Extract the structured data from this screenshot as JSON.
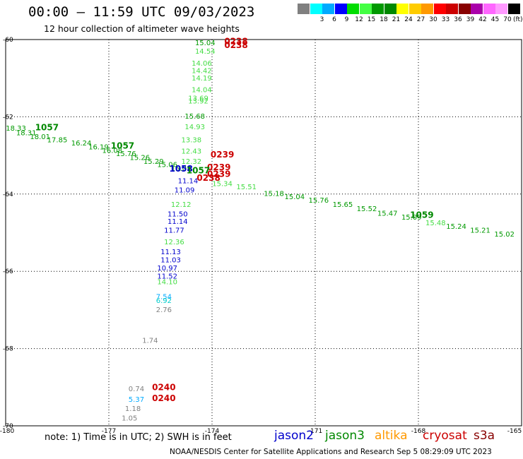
{
  "header": {
    "title": "00:00 – 11:59 UTC 09/03/2023",
    "subtitle": "12 hour collection of altimeter wave heights"
  },
  "color_scale": {
    "unit": "(ft)",
    "items": [
      {
        "color": "#808080",
        "label": ""
      },
      {
        "color": "#00ffff",
        "label": "3"
      },
      {
        "color": "#00aaff",
        "label": "6"
      },
      {
        "color": "#0000ff",
        "label": "9"
      },
      {
        "color": "#00dd00",
        "label": "12"
      },
      {
        "color": "#44ff44",
        "label": "15"
      },
      {
        "color": "#009900",
        "label": "18"
      },
      {
        "color": "#008800",
        "label": "21"
      },
      {
        "color": "#ffff00",
        "label": "24"
      },
      {
        "color": "#ffcc00",
        "label": "27"
      },
      {
        "color": "#ff9900",
        "label": "30"
      },
      {
        "color": "#ff0000",
        "label": "33"
      },
      {
        "color": "#cc0000",
        "label": "36"
      },
      {
        "color": "#880000",
        "label": "39"
      },
      {
        "color": "#aa00aa",
        "label": "42"
      },
      {
        "color": "#ff66ff",
        "label": "45"
      },
      {
        "color": "#ff99ff",
        "label": "70"
      },
      {
        "color": "#000000",
        "label": ""
      }
    ]
  },
  "footer": {
    "note": "note: 1) Time is in UTC; 2) SWH is in feet",
    "credit": "NOAA/NESDIS Center for Satellite Applications and Research    Sep  5 08:29:09 UTC 2023",
    "satellites": [
      {
        "name": "jason2",
        "color": "#0000cc"
      },
      {
        "name": "jason3",
        "color": "#008800"
      },
      {
        "name": "altika",
        "color": "#ff9900"
      },
      {
        "name": "cryosat",
        "color": "#cc0000"
      },
      {
        "name": "s3a",
        "color": "#880000"
      }
    ]
  },
  "chart_data": {
    "type": "scatter",
    "title": "00:00 – 11:59 UTC 09/03/2023",
    "subtitle": "12 hour collection of altimeter wave heights",
    "xlim": [
      -180,
      -165
    ],
    "ylim": [
      -70,
      -60
    ],
    "x_ticks": [
      "-180",
      "-177",
      "-174",
      "-171",
      "-168",
      "-165"
    ],
    "y_ticks": [
      "-60",
      "-62",
      "-64",
      "-66",
      "-68",
      "-70"
    ],
    "grid": true,
    "points": [
      {
        "x": -174.2,
        "y": -60.15,
        "label": "15.04",
        "color": "#009900"
      },
      {
        "x": -174.2,
        "y": -60.37,
        "label": "14.54",
        "color": "#44dd44"
      },
      {
        "x": -174.3,
        "y": -60.68,
        "label": "14.06",
        "color": "#44dd44"
      },
      {
        "x": -174.3,
        "y": -60.87,
        "label": "14.42",
        "color": "#44dd44"
      },
      {
        "x": -174.3,
        "y": -61.06,
        "label": "14.19",
        "color": "#44dd44"
      },
      {
        "x": -174.3,
        "y": -61.36,
        "label": "14.04",
        "color": "#44dd44"
      },
      {
        "x": -174.4,
        "y": -61.58,
        "label": "13.69",
        "color": "#44dd44"
      },
      {
        "x": -174.4,
        "y": -61.65,
        "label": "13.92",
        "color": "#44dd44"
      },
      {
        "x": -174.5,
        "y": -62.05,
        "label": "15.68",
        "color": "#009900"
      },
      {
        "x": -174.5,
        "y": -62.32,
        "label": "14.93",
        "color": "#44dd44"
      },
      {
        "x": -174.6,
        "y": -62.66,
        "label": "13.38",
        "color": "#44dd44"
      },
      {
        "x": -174.6,
        "y": -62.95,
        "label": "12.43",
        "color": "#44dd44"
      },
      {
        "x": -174.6,
        "y": -63.22,
        "label": "12.32",
        "color": "#44dd44"
      },
      {
        "x": -174.7,
        "y": -63.72,
        "label": "11.14",
        "color": "#0000cc"
      },
      {
        "x": -174.8,
        "y": -63.96,
        "label": "11.09",
        "color": "#0000cc"
      },
      {
        "x": -174.9,
        "y": -64.33,
        "label": "12.12",
        "color": "#44dd44"
      },
      {
        "x": -175.0,
        "y": -64.58,
        "label": "11.50",
        "color": "#0000cc"
      },
      {
        "x": -175.0,
        "y": -64.77,
        "label": "11.14",
        "color": "#0000cc"
      },
      {
        "x": -175.1,
        "y": -65.0,
        "label": "11.77",
        "color": "#0000cc"
      },
      {
        "x": -175.1,
        "y": -65.3,
        "label": "12.36",
        "color": "#44dd44"
      },
      {
        "x": -175.2,
        "y": -65.56,
        "label": "11.13",
        "color": "#0000cc"
      },
      {
        "x": -175.2,
        "y": -65.77,
        "label": "11.03",
        "color": "#0000cc"
      },
      {
        "x": -175.3,
        "y": -65.98,
        "label": "10.97",
        "color": "#0000cc"
      },
      {
        "x": -175.3,
        "y": -66.19,
        "label": "11.52",
        "color": "#0000cc"
      },
      {
        "x": -175.3,
        "y": -66.33,
        "label": "14.10",
        "color": "#44dd44"
      },
      {
        "x": -175.4,
        "y": -66.72,
        "label": "7.54",
        "color": "#00aaff"
      },
      {
        "x": -175.4,
        "y": -66.82,
        "label": "6.92",
        "color": "#00cccc"
      },
      {
        "x": -175.4,
        "y": -67.06,
        "label": "2.76",
        "color": "#808080"
      },
      {
        "x": -175.8,
        "y": -67.85,
        "label": "1.74",
        "color": "#808080"
      },
      {
        "x": -176.2,
        "y": -69.1,
        "label": "0.74",
        "color": "#808080"
      },
      {
        "x": -176.2,
        "y": -69.38,
        "label": "5.37",
        "color": "#00aaff"
      },
      {
        "x": -176.3,
        "y": -69.62,
        "label": "1.18",
        "color": "#808080"
      },
      {
        "x": -176.4,
        "y": -69.86,
        "label": "1.05",
        "color": "#808080"
      },
      {
        "x": -179.7,
        "y": -62.36,
        "label": "18.33",
        "color": "#009900"
      },
      {
        "x": -179.4,
        "y": -62.48,
        "label": "18.31",
        "color": "#009900"
      },
      {
        "x": -179.0,
        "y": -62.58,
        "label": "18.01",
        "color": "#009900"
      },
      {
        "x": -178.5,
        "y": -62.66,
        "label": "17.85",
        "color": "#009900"
      },
      {
        "x": -177.8,
        "y": -62.74,
        "label": "16.24",
        "color": "#009900"
      },
      {
        "x": -177.3,
        "y": -62.84,
        "label": "16.19",
        "color": "#009900"
      },
      {
        "x": -176.9,
        "y": -62.93,
        "label": "16.08",
        "color": "#009900"
      },
      {
        "x": -176.5,
        "y": -63.02,
        "label": "15.76",
        "color": "#009900"
      },
      {
        "x": -176.1,
        "y": -63.12,
        "label": "15.26",
        "color": "#009900"
      },
      {
        "x": -175.7,
        "y": -63.22,
        "label": "15.29",
        "color": "#009900"
      },
      {
        "x": -175.3,
        "y": -63.3,
        "label": "15.06",
        "color": "#009900"
      },
      {
        "x": -174.9,
        "y": -63.4,
        "label": "15.03",
        "color": "#009900"
      },
      {
        "x": -173.7,
        "y": -63.79,
        "label": "15.34",
        "color": "#44dd44"
      },
      {
        "x": -173.0,
        "y": -63.88,
        "label": "15.51",
        "color": "#44dd44"
      },
      {
        "x": -172.2,
        "y": -64.05,
        "label": "15.18",
        "color": "#009900"
      },
      {
        "x": -171.6,
        "y": -64.13,
        "label": "15.04",
        "color": "#009900"
      },
      {
        "x": -170.9,
        "y": -64.22,
        "label": "15.76",
        "color": "#009900"
      },
      {
        "x": -170.2,
        "y": -64.33,
        "label": "15.65",
        "color": "#009900"
      },
      {
        "x": -169.5,
        "y": -64.44,
        "label": "15.52",
        "color": "#009900"
      },
      {
        "x": -168.9,
        "y": -64.56,
        "label": "15.47",
        "color": "#009900"
      },
      {
        "x": -168.2,
        "y": -64.66,
        "label": "15.09",
        "color": "#009900"
      },
      {
        "x": -167.5,
        "y": -64.81,
        "label": "15.48",
        "color": "#44dd44"
      },
      {
        "x": -166.9,
        "y": -64.9,
        "label": "15.24",
        "color": "#009900"
      },
      {
        "x": -166.2,
        "y": -65.0,
        "label": "15.21",
        "color": "#009900"
      },
      {
        "x": -165.5,
        "y": -65.1,
        "label": "15.02",
        "color": "#009900"
      }
    ],
    "pass_labels": [
      {
        "x": -173.3,
        "y": -60.12,
        "label": "0238",
        "color": "#cc0000"
      },
      {
        "x": -173.3,
        "y": -60.22,
        "label": "0238",
        "color": "#cc0000"
      },
      {
        "x": -178.8,
        "y": -62.35,
        "label": "1057",
        "color": "#008800"
      },
      {
        "x": -176.6,
        "y": -62.82,
        "label": "1057",
        "color": "#008800"
      },
      {
        "x": -173.7,
        "y": -63.05,
        "label": "0239",
        "color": "#cc0000"
      },
      {
        "x": -173.8,
        "y": -63.38,
        "label": "0239",
        "color": "#cc0000"
      },
      {
        "x": -173.8,
        "y": -63.56,
        "label": "0239",
        "color": "#cc0000"
      },
      {
        "x": -174.1,
        "y": -63.66,
        "label": "0238",
        "color": "#cc0000"
      },
      {
        "x": -174.9,
        "y": -63.42,
        "label": "1058",
        "color": "#0000cc"
      },
      {
        "x": -174.4,
        "y": -63.46,
        "label": "1057",
        "color": "#008800"
      },
      {
        "x": -167.9,
        "y": -64.62,
        "label": "1059",
        "color": "#008800"
      },
      {
        "x": -175.4,
        "y": -69.08,
        "label": "0240",
        "color": "#cc0000"
      },
      {
        "x": -175.4,
        "y": -69.36,
        "label": "0240",
        "color": "#cc0000"
      }
    ]
  }
}
